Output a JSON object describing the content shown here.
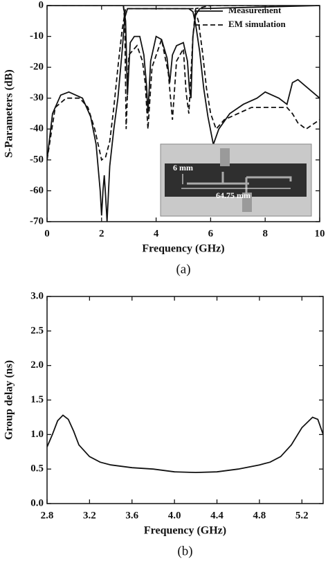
{
  "chart_data": [
    {
      "type": "line",
      "xlabel": "Frequency (GHz)",
      "ylabel": "S-Parameters (dB)",
      "caption": "(a)",
      "xlim": [
        0,
        10
      ],
      "ylim": [
        -70,
        0
      ],
      "xticks": [
        0,
        2,
        4,
        6,
        8,
        10
      ],
      "yticks": [
        -70,
        -60,
        -50,
        -40,
        -30,
        -20,
        -10,
        0
      ],
      "legend": "upper right",
      "inset_labels": [
        "6 mm",
        "64.75 mm"
      ],
      "series": [
        {
          "name": "Measurement",
          "color": "#111111",
          "dash": false,
          "x": [
            0,
            0.2,
            0.5,
            0.8,
            1.3,
            1.6,
            1.8,
            1.95,
            2.0,
            2.05,
            2.1,
            2.15,
            2.2,
            2.3,
            2.45,
            2.6,
            2.75,
            2.85,
            2.95,
            3.5,
            4.5,
            5.2,
            5.35,
            5.45,
            5.6,
            5.75,
            5.9,
            6.1,
            6.3,
            6.7,
            7.2,
            7.7,
            8.0,
            8.5,
            8.8,
            9.0,
            9.2,
            9.6,
            10
          ],
          "values": [
            -50,
            -35,
            -29,
            -28,
            -30,
            -36,
            -45,
            -60,
            -68,
            -60,
            -55,
            -62,
            -70,
            -52,
            -40,
            -30,
            -15,
            -4,
            -1,
            -1,
            -1,
            -1,
            -2,
            -6,
            -15,
            -27,
            -36,
            -45,
            -40,
            -35,
            -32,
            -30,
            -28,
            -30,
            -32,
            -25,
            -24,
            -27,
            -30
          ]
        },
        {
          "color": "#111111",
          "dash": false,
          "x": [
            0,
            2.8,
            2.88,
            2.95,
            3.05,
            3.2,
            3.4,
            3.55,
            3.65,
            3.7,
            3.8,
            4.0,
            4.2,
            4.4,
            4.5,
            4.6,
            4.75,
            5.0,
            5.15,
            5.22,
            5.28,
            5.35,
            5.45,
            5.6,
            10
          ],
          "values": [
            0,
            0,
            -5,
            -29,
            -12,
            -10,
            -10,
            -16,
            -26,
            -35,
            -18,
            -10,
            -11,
            -17,
            -25,
            -16,
            -13,
            -12,
            -18,
            -27,
            -30,
            -10,
            -3,
            -1,
            0
          ]
        },
        {
          "name": "EM simulation",
          "color": "#111111",
          "dash": true,
          "x": [
            0,
            0.3,
            0.7,
            1.2,
            1.5,
            1.75,
            2.0,
            2.15,
            2.3,
            2.45,
            2.6,
            2.75,
            2.88,
            3.5,
            4.5,
            5.4,
            5.55,
            5.7,
            5.85,
            6.0,
            6.2,
            6.5,
            7.0,
            7.5,
            8.0,
            8.5,
            8.8,
            9.0,
            9.2,
            9.5,
            10
          ],
          "values": [
            -50,
            -33,
            -30,
            -30,
            -33,
            -40,
            -50,
            -49,
            -44,
            -33,
            -20,
            -8,
            -1,
            -1,
            -1,
            -1,
            -5,
            -15,
            -27,
            -35,
            -40,
            -37,
            -35,
            -33,
            -33,
            -33,
            -33,
            -35,
            -38,
            -40,
            -37
          ]
        },
        {
          "color": "#111111",
          "dash": true,
          "x": [
            0,
            2.8,
            2.85,
            2.9,
            3.0,
            3.3,
            3.5,
            3.6,
            3.7,
            3.85,
            4.2,
            4.45,
            4.6,
            4.75,
            5.0,
            5.1,
            5.2,
            5.35,
            5.45,
            6.0,
            10
          ],
          "values": [
            0,
            0,
            -5,
            -40,
            -16,
            -13,
            -18,
            -25,
            -40,
            -20,
            -11,
            -22,
            -37,
            -18,
            -14,
            -28,
            -35,
            -10,
            -1,
            0,
            0
          ]
        }
      ]
    },
    {
      "type": "line",
      "xlabel": "Frequency (GHz)",
      "ylabel": "Group delay (ns)",
      "caption": "(b)",
      "xlim": [
        2.8,
        5.4
      ],
      "ylim": [
        0,
        3
      ],
      "xticks": [
        2.8,
        3.2,
        3.6,
        {
          "value": 4,
          "label": "4.0"
        },
        4.4,
        4.8,
        5.2
      ],
      "yticks": [
        {
          "value": 0,
          "label": "0.0"
        },
        0.5,
        {
          "value": 1,
          "label": "1.0"
        },
        1.5,
        {
          "value": 2,
          "label": "2.0"
        },
        2.5,
        {
          "value": 3,
          "label": "3.0"
        }
      ],
      "series": [
        {
          "color": "#111111",
          "dash": false,
          "x": [
            2.8,
            2.85,
            2.9,
            2.95,
            3.0,
            3.05,
            3.1,
            3.2,
            3.3,
            3.4,
            3.6,
            3.8,
            4.0,
            4.2,
            4.4,
            4.6,
            4.8,
            4.9,
            5.0,
            5.1,
            5.2,
            5.3,
            5.35,
            5.4
          ],
          "values": [
            0.82,
            1.0,
            1.2,
            1.28,
            1.22,
            1.05,
            0.85,
            0.68,
            0.6,
            0.56,
            0.52,
            0.5,
            0.46,
            0.45,
            0.46,
            0.5,
            0.56,
            0.6,
            0.68,
            0.85,
            1.1,
            1.25,
            1.22,
            1.0
          ]
        }
      ]
    }
  ]
}
